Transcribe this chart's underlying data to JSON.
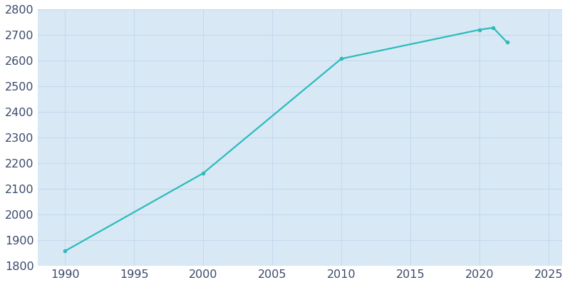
{
  "years": [
    1990,
    2000,
    2010,
    2020,
    2021,
    2022
  ],
  "population": [
    1858,
    2161,
    2607,
    2720,
    2728,
    2671
  ],
  "line_color": "#2bbcbc",
  "marker": "o",
  "marker_size": 3,
  "line_width": 1.6,
  "fig_bg_color": "#ffffff",
  "plot_bg_color": "#d9e8f5",
  "grid_color": "#c5d9ec",
  "tick_color": "#3a4a6b",
  "xlim": [
    1988,
    2026
  ],
  "ylim": [
    1800,
    2800
  ],
  "yticks": [
    1800,
    1900,
    2000,
    2100,
    2200,
    2300,
    2400,
    2500,
    2600,
    2700,
    2800
  ],
  "xticks": [
    1990,
    1995,
    2000,
    2005,
    2010,
    2015,
    2020,
    2025
  ],
  "tick_fontsize": 11.5
}
